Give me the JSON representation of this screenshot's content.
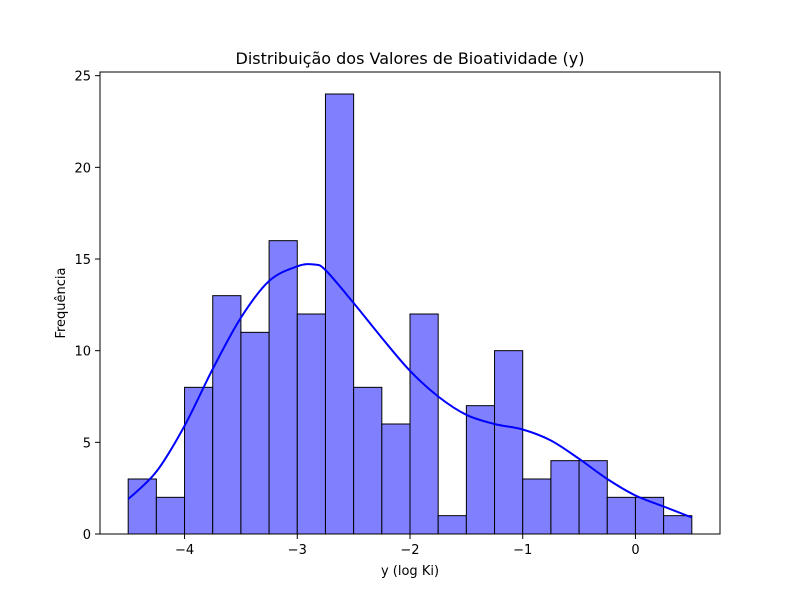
{
  "chart_data": {
    "type": "bar",
    "title": "Distribuição dos Valores de Bioatividade (y)",
    "xlabel": "y (log Ki)",
    "ylabel": "Frequência",
    "xlim": [
      -4.75,
      0.75
    ],
    "ylim": [
      0,
      25.2
    ],
    "xticks": [
      -4,
      -3,
      -2,
      -1,
      0
    ],
    "xtick_labels": [
      "−4",
      "−3",
      "−2",
      "−1",
      "0"
    ],
    "yticks": [
      0,
      5,
      10,
      15,
      20,
      25
    ],
    "ytick_labels": [
      "0",
      "5",
      "10",
      "15",
      "20",
      "25"
    ],
    "grid": false,
    "bin_edges": [
      -4.5,
      -4.25,
      -4.0,
      -3.75,
      -3.5,
      -3.25,
      -3.0,
      -2.75,
      -2.5,
      -2.25,
      -2.0,
      -1.75,
      -1.5,
      -1.25,
      -1.0,
      -0.75,
      -0.5,
      -0.25,
      0.0,
      0.25,
      0.5
    ],
    "counts": [
      3,
      2,
      8,
      13,
      11,
      16,
      12,
      24,
      8,
      6,
      12,
      1,
      7,
      10,
      3,
      4,
      4,
      2,
      2,
      1
    ],
    "bar_color": "#8080ff",
    "bar_edge_color": "#000000",
    "kde": {
      "color": "#0000ff",
      "x": [
        -4.5,
        -4.25,
        -4.0,
        -3.75,
        -3.5,
        -3.25,
        -3.0,
        -2.85,
        -2.75,
        -2.5,
        -2.25,
        -2.0,
        -1.75,
        -1.5,
        -1.25,
        -1.0,
        -0.75,
        -0.5,
        -0.25,
        0.0,
        0.25,
        0.5
      ],
      "y": [
        1.9,
        3.4,
        5.9,
        9.0,
        11.8,
        13.8,
        14.6,
        14.7,
        14.4,
        12.6,
        10.7,
        8.9,
        7.5,
        6.5,
        6.0,
        5.7,
        5.1,
        4.1,
        3.0,
        2.1,
        1.5,
        0.9
      ]
    }
  }
}
